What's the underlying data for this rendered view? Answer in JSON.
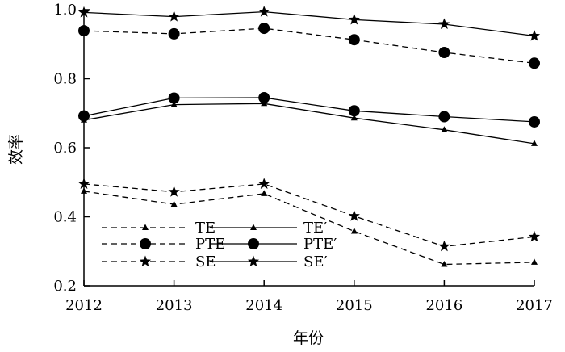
{
  "chart_data": {
    "type": "line",
    "xlabel": "年份",
    "ylabel": "效率",
    "categories": [
      "2012",
      "2013",
      "2014",
      "2015",
      "2016",
      "2017"
    ],
    "yticks": [
      "0.2",
      "0.4",
      "0.6",
      "0.8",
      "1.0"
    ],
    "ylim": [
      0.2,
      1.0
    ],
    "grid": false,
    "legend_position": "bottom-left",
    "series": [
      {
        "name": "TE",
        "marker": "triangle",
        "dashed": true,
        "values": [
          0.474,
          0.436,
          0.467,
          0.358,
          0.262,
          0.268
        ]
      },
      {
        "name": "PTE",
        "marker": "circle",
        "dashed": true,
        "values": [
          0.939,
          0.93,
          0.946,
          0.913,
          0.876,
          0.845
        ]
      },
      {
        "name": "SE",
        "marker": "star",
        "dashed": true,
        "values": [
          0.495,
          0.472,
          0.495,
          0.402,
          0.314,
          0.342
        ]
      },
      {
        "name": "TE′",
        "marker": "triangle",
        "dashed": false,
        "values": [
          0.68,
          0.725,
          0.728,
          0.686,
          0.652,
          0.612
        ]
      },
      {
        "name": "PTE′",
        "marker": "circle",
        "dashed": false,
        "values": [
          0.692,
          0.744,
          0.745,
          0.707,
          0.69,
          0.675
        ]
      },
      {
        "name": "SE′",
        "marker": "star",
        "dashed": false,
        "values": [
          0.992,
          0.98,
          0.994,
          0.971,
          0.958,
          0.924
        ]
      }
    ]
  }
}
